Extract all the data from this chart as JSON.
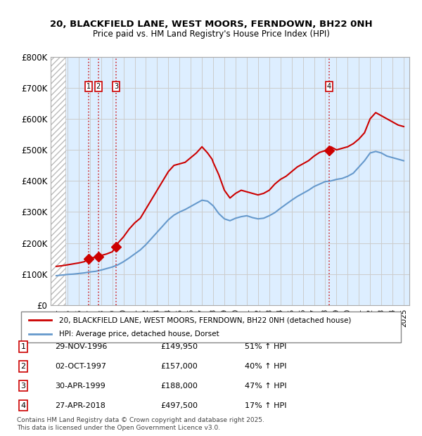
{
  "title_line1": "20, BLACKFIELD LANE, WEST MOORS, FERNDOWN, BH22 0NH",
  "title_line2": "Price paid vs. HM Land Registry's House Price Index (HPI)",
  "xlabel": "",
  "ylabel": "",
  "ylim": [
    0,
    800000
  ],
  "yticks": [
    0,
    100000,
    200000,
    300000,
    400000,
    500000,
    600000,
    700000,
    800000
  ],
  "ytick_labels": [
    "£0",
    "£100K",
    "£200K",
    "£300K",
    "£400K",
    "£500K",
    "£600K",
    "£700K",
    "£800K"
  ],
  "xlim_start": 1993.5,
  "xlim_end": 2025.5,
  "sale_dates": [
    1996.91,
    1997.75,
    1999.33,
    2018.32
  ],
  "sale_prices": [
    149950,
    157000,
    188000,
    497500
  ],
  "sale_labels": [
    "1",
    "2",
    "3",
    "4"
  ],
  "sale_info": [
    {
      "num": "1",
      "date": "29-NOV-1996",
      "price": "£149,950",
      "hpi": "51% ↑ HPI"
    },
    {
      "num": "2",
      "date": "02-OCT-1997",
      "price": "£157,000",
      "hpi": "40% ↑ HPI"
    },
    {
      "num": "3",
      "date": "30-APR-1999",
      "price": "£188,000",
      "hpi": "47% ↑ HPI"
    },
    {
      "num": "4",
      "date": "27-APR-2018",
      "price": "£497,500",
      "hpi": "17% ↑ HPI"
    }
  ],
  "red_line_color": "#cc0000",
  "blue_line_color": "#6699cc",
  "hatch_color": "#cccccc",
  "grid_color": "#cccccc",
  "background_color": "#ddeeff",
  "legend_label_red": "20, BLACKFIELD LANE, WEST MOORS, FERNDOWN, BH22 0NH (detached house)",
  "legend_label_blue": "HPI: Average price, detached house, Dorset",
  "footer": "Contains HM Land Registry data © Crown copyright and database right 2025.\nThis data is licensed under the Open Government Licence v3.0.",
  "red_line_x": [
    1994.0,
    1994.5,
    1995.0,
    1995.5,
    1996.0,
    1996.5,
    1996.91,
    1997.0,
    1997.5,
    1997.75,
    1998.0,
    1998.5,
    1999.0,
    1999.33,
    1999.5,
    2000.0,
    2000.5,
    2001.0,
    2001.5,
    2002.0,
    2002.5,
    2003.0,
    2003.5,
    2004.0,
    2004.5,
    2005.0,
    2005.5,
    2006.0,
    2006.5,
    2007.0,
    2007.5,
    2007.9,
    2008.0,
    2008.5,
    2009.0,
    2009.5,
    2010.0,
    2010.5,
    2011.0,
    2011.5,
    2012.0,
    2012.5,
    2013.0,
    2013.5,
    2014.0,
    2014.5,
    2015.0,
    2015.5,
    2016.0,
    2016.5,
    2017.0,
    2017.5,
    2018.0,
    2018.32,
    2018.5,
    2019.0,
    2019.5,
    2020.0,
    2020.5,
    2021.0,
    2021.5,
    2022.0,
    2022.5,
    2023.0,
    2023.5,
    2024.0,
    2024.5,
    2025.0
  ],
  "red_line_y": [
    125000,
    127000,
    130000,
    133000,
    136000,
    140000,
    149950,
    152000,
    154000,
    157000,
    160000,
    165000,
    172000,
    188000,
    200000,
    220000,
    245000,
    265000,
    280000,
    310000,
    340000,
    370000,
    400000,
    430000,
    450000,
    455000,
    460000,
    475000,
    490000,
    510000,
    490000,
    470000,
    460000,
    420000,
    370000,
    345000,
    360000,
    370000,
    365000,
    360000,
    355000,
    360000,
    370000,
    390000,
    405000,
    415000,
    430000,
    445000,
    455000,
    465000,
    480000,
    492000,
    497500,
    497500,
    510000,
    500000,
    505000,
    510000,
    520000,
    535000,
    555000,
    600000,
    620000,
    610000,
    600000,
    590000,
    580000,
    575000
  ],
  "blue_line_x": [
    1994.0,
    1994.5,
    1995.0,
    1995.5,
    1996.0,
    1996.5,
    1997.0,
    1997.5,
    1998.0,
    1998.5,
    1999.0,
    1999.5,
    2000.0,
    2000.5,
    2001.0,
    2001.5,
    2002.0,
    2002.5,
    2003.0,
    2003.5,
    2004.0,
    2004.5,
    2005.0,
    2005.5,
    2006.0,
    2006.5,
    2007.0,
    2007.5,
    2008.0,
    2008.5,
    2009.0,
    2009.5,
    2010.0,
    2010.5,
    2011.0,
    2011.5,
    2012.0,
    2012.5,
    2013.0,
    2013.5,
    2014.0,
    2014.5,
    2015.0,
    2015.5,
    2016.0,
    2016.5,
    2017.0,
    2017.5,
    2018.0,
    2018.5,
    2019.0,
    2019.5,
    2020.0,
    2020.5,
    2021.0,
    2021.5,
    2022.0,
    2022.5,
    2023.0,
    2023.5,
    2024.0,
    2024.5,
    2025.0
  ],
  "blue_line_y": [
    95000,
    97000,
    99000,
    100000,
    102000,
    104000,
    107000,
    109000,
    113000,
    118000,
    123000,
    130000,
    140000,
    152000,
    165000,
    178000,
    195000,
    215000,
    235000,
    255000,
    275000,
    290000,
    300000,
    308000,
    318000,
    328000,
    338000,
    335000,
    320000,
    295000,
    278000,
    272000,
    280000,
    285000,
    288000,
    282000,
    278000,
    280000,
    288000,
    298000,
    312000,
    325000,
    338000,
    350000,
    360000,
    370000,
    382000,
    390000,
    398000,
    400000,
    405000,
    408000,
    415000,
    425000,
    445000,
    465000,
    490000,
    495000,
    490000,
    480000,
    475000,
    470000,
    465000
  ]
}
